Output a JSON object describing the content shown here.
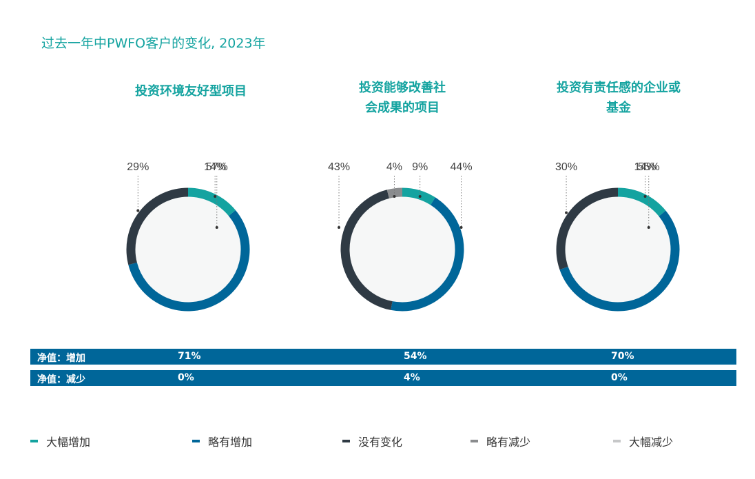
{
  "title": "过去一年中PWFO客户的变化, 2023年",
  "colors": {
    "大幅增加": "#14a3a0",
    "略有增加": "#006699",
    "没有变化": "#2f3a44",
    "略有减少": "#8a8c8e",
    "大幅减少": "#c6c7c8",
    "donut_fill": "#f6f7f7",
    "accent_text": "#14a3a0",
    "net_bar": "#006699"
  },
  "chart_data": [
    {
      "type": "pie",
      "title": "投资环境友好型项目",
      "categories": [
        "大幅增加",
        "略有增加",
        "没有变化"
      ],
      "values": [
        14,
        57,
        29
      ],
      "labels": [
        "14%",
        "57%",
        "29%"
      ]
    },
    {
      "type": "pie",
      "title": "投资能够改善社会成果的项目",
      "categories": [
        "大幅增加",
        "略有增加",
        "没有变化",
        "略有减少"
      ],
      "values": [
        9,
        44,
        43,
        4
      ],
      "labels": [
        "9%",
        "44%",
        "43%",
        "4%"
      ]
    },
    {
      "type": "pie",
      "title": "投资有责任感的企业或基金",
      "categories": [
        "大幅增加",
        "略有增加",
        "没有变化"
      ],
      "values": [
        14,
        55,
        30
      ],
      "labels": [
        "14%",
        "55%",
        "30%"
      ]
    }
  ],
  "net_rows": [
    {
      "label": "净值：增加",
      "values": [
        "71%",
        "54%",
        "70%"
      ]
    },
    {
      "label": "净值：减少",
      "values": [
        "0%",
        "4%",
        "0%"
      ]
    }
  ],
  "legend": [
    "大幅增加",
    "略有增加",
    "没有变化",
    "略有减少",
    "大幅减少"
  ]
}
